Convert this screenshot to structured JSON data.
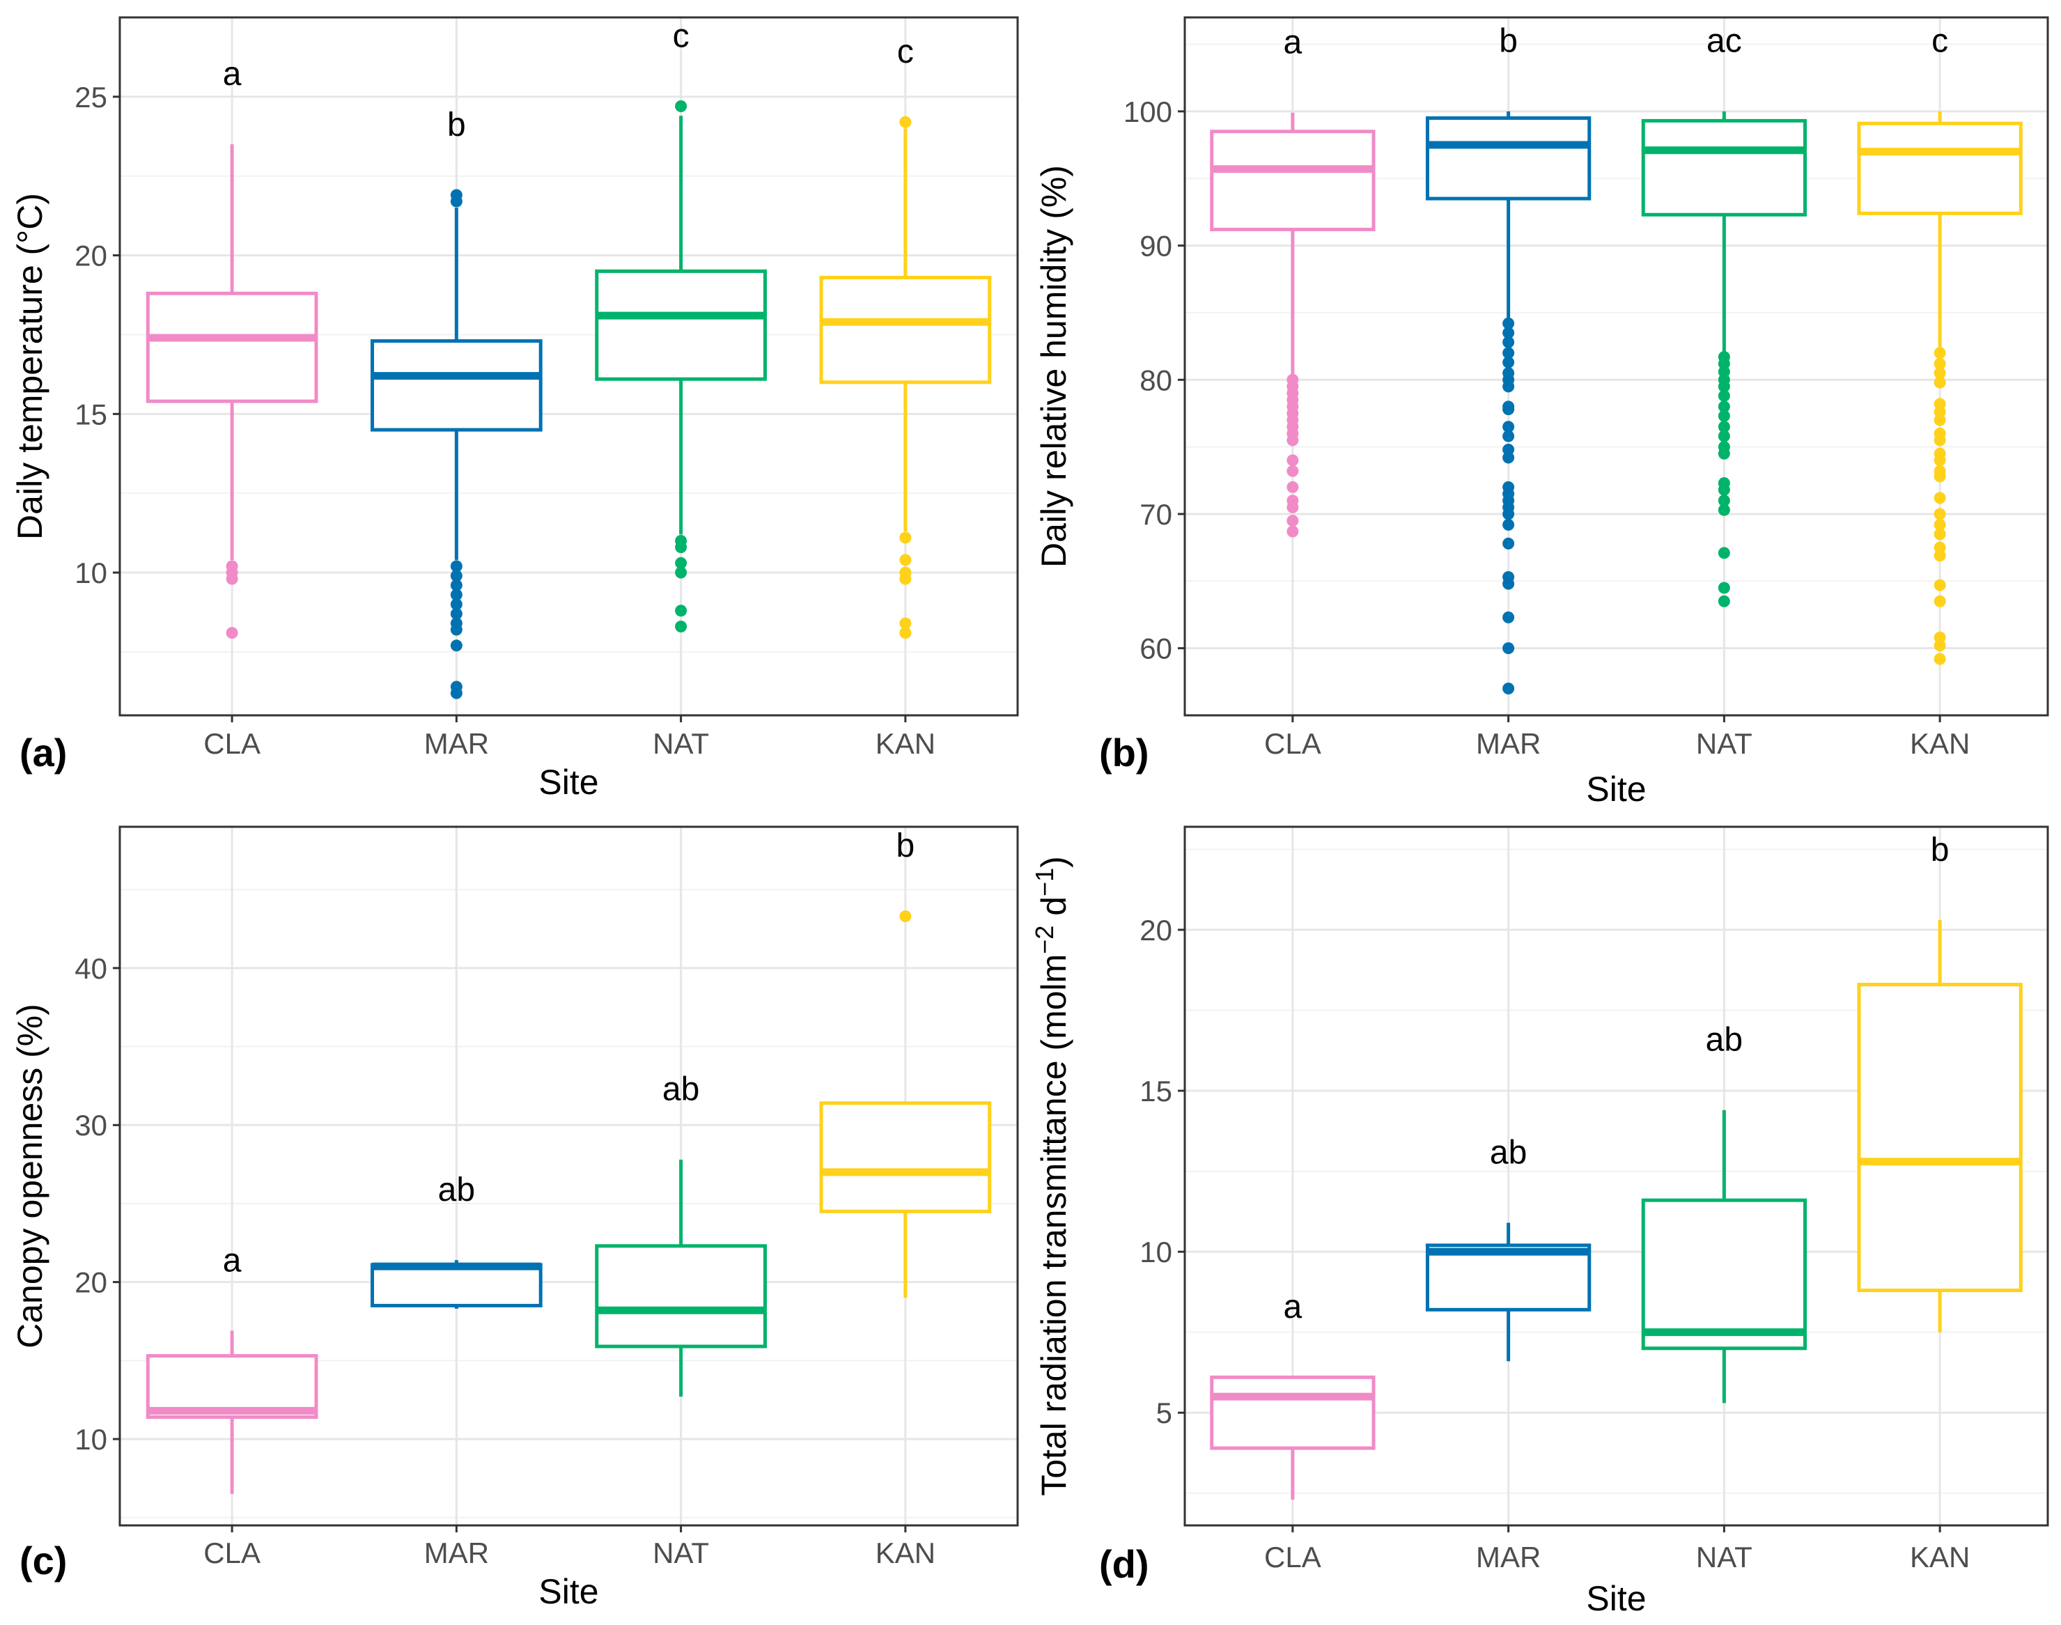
{
  "chart_data": [
    {
      "type": "box",
      "panel_label": "(a)",
      "title": "",
      "xlabel": "Site",
      "ylabel": "Daily temperature (°C)",
      "ylim": [
        5.5,
        27.5
      ],
      "yticks": [
        10,
        15,
        20,
        25
      ],
      "ytick_labels": [
        "10",
        "15",
        "20",
        "25"
      ],
      "grid": true,
      "categories": [
        "CLA",
        "MAR",
        "NAT",
        "KAN"
      ],
      "colors": [
        "#F08BC8",
        "#0072B2",
        "#00B36B",
        "#FFD11A"
      ],
      "boxes": [
        {
          "whisker_low": 10.4,
          "q1": 15.4,
          "median": 17.4,
          "q3": 18.8,
          "whisker_high": 23.5,
          "outliers": [
            10.2,
            10.0,
            9.8,
            8.1
          ],
          "letter": "a"
        },
        {
          "whisker_low": 10.4,
          "q1": 14.5,
          "median": 16.2,
          "q3": 17.3,
          "whisker_high": 21.5,
          "outliers": [
            21.9,
            21.7,
            10.2,
            9.9,
            9.6,
            9.3,
            9.0,
            8.7,
            8.4,
            8.2,
            7.7,
            6.4,
            6.2
          ],
          "letter": "b"
        },
        {
          "whisker_low": 11.2,
          "q1": 16.1,
          "median": 18.1,
          "q3": 19.5,
          "whisker_high": 24.4,
          "outliers": [
            24.7,
            11.0,
            10.8,
            10.3,
            10.0,
            8.8,
            8.3
          ],
          "letter": "c"
        },
        {
          "whisker_low": 11.3,
          "q1": 16.0,
          "median": 17.9,
          "q3": 19.3,
          "whisker_high": 24.0,
          "outliers": [
            24.2,
            11.1,
            10.4,
            10.0,
            9.8,
            8.4,
            8.1
          ],
          "letter": "c"
        }
      ]
    },
    {
      "type": "box",
      "panel_label": "(b)",
      "title": "",
      "xlabel": "Site",
      "ylabel": "Daily relative humidity (%)",
      "ylim": [
        55,
        107
      ],
      "yticks": [
        60,
        70,
        80,
        90,
        100
      ],
      "ytick_labels": [
        "60",
        "70",
        "80",
        "90",
        "100"
      ],
      "grid": true,
      "categories": [
        "CLA",
        "MAR",
        "NAT",
        "KAN"
      ],
      "colors": [
        "#F08BC8",
        "#0072B2",
        "#00B36B",
        "#FFD11A"
      ],
      "boxes": [
        {
          "whisker_low": 80.4,
          "q1": 91.2,
          "median": 95.7,
          "q3": 98.5,
          "whisker_high": 99.9,
          "outliers": [
            80.0,
            79.5,
            79.0,
            78.5,
            78.0,
            77.5,
            77.0,
            76.5,
            76.0,
            75.5,
            74.0,
            73.2,
            72.0,
            71.0,
            70.5,
            69.5,
            68.7
          ],
          "letter": "a"
        },
        {
          "whisker_low": 84.6,
          "q1": 93.5,
          "median": 97.5,
          "q3": 99.5,
          "whisker_high": 100,
          "outliers": [
            84.2,
            83.5,
            82.8,
            82.0,
            81.3,
            80.5,
            80.0,
            79.5,
            78.0,
            77.8,
            76.5,
            75.8,
            74.8,
            74.2,
            72.0,
            71.5,
            71.0,
            70.5,
            70.0,
            69.2,
            67.8,
            65.3,
            64.8,
            62.3,
            60.0,
            57.0
          ],
          "letter": "b"
        },
        {
          "whisker_low": 82.1,
          "q1": 92.3,
          "median": 97.1,
          "q3": 99.3,
          "whisker_high": 100,
          "outliers": [
            81.7,
            81.2,
            80.6,
            80.0,
            79.5,
            78.8,
            78.0,
            77.3,
            76.5,
            75.8,
            75.0,
            74.5,
            72.3,
            71.8,
            71.0,
            70.3,
            67.1,
            64.5,
            63.5
          ],
          "letter": "ac"
        },
        {
          "whisker_low": 82.4,
          "q1": 92.4,
          "median": 97.0,
          "q3": 99.1,
          "whisker_high": 100,
          "outliers": [
            82.0,
            81.2,
            80.5,
            79.8,
            78.2,
            77.6,
            77.0,
            76.0,
            75.5,
            74.5,
            74.0,
            73.2,
            72.8,
            71.2,
            70.0,
            69.2,
            68.5,
            67.5,
            66.9,
            64.7,
            63.5,
            60.8,
            60.2,
            59.2
          ],
          "letter": "c"
        }
      ]
    },
    {
      "type": "box",
      "panel_label": "(c)",
      "title": "",
      "xlabel": "Site",
      "ylabel": "Canopy openness (%)",
      "ylim": [
        4.5,
        49
      ],
      "yticks": [
        10,
        20,
        30,
        40
      ],
      "ytick_labels": [
        "10",
        "20",
        "30",
        "40"
      ],
      "grid": true,
      "categories": [
        "CLA",
        "MAR",
        "NAT",
        "KAN"
      ],
      "colors": [
        "#F08BC8",
        "#0072B2",
        "#00B36B",
        "#FFD11A"
      ],
      "boxes": [
        {
          "whisker_low": 6.5,
          "q1": 11.4,
          "median": 11.8,
          "q3": 15.3,
          "whisker_high": 16.9,
          "outliers": [],
          "letter": "a"
        },
        {
          "whisker_low": 18.3,
          "q1": 18.5,
          "median": 21.0,
          "q3": 21.1,
          "whisker_high": 21.4,
          "outliers": [],
          "letter": "ab"
        },
        {
          "whisker_low": 12.7,
          "q1": 15.9,
          "median": 18.2,
          "q3": 22.3,
          "whisker_high": 27.8,
          "outliers": [],
          "letter": "ab"
        },
        {
          "whisker_low": 19.0,
          "q1": 24.5,
          "median": 27.0,
          "q3": 31.4,
          "whisker_high": 31.4,
          "outliers": [
            43.3
          ],
          "letter": "b"
        }
      ]
    },
    {
      "type": "box",
      "panel_label": "(d)",
      "title": "",
      "xlabel": "Site",
      "ylabel": "Total radiation transmittance (molm",
      "ylabel_parts": [
        "Total radiation transmittance (molm",
        "−2",
        " d",
        "−1",
        ")"
      ],
      "ylim": [
        1.5,
        23.2
      ],
      "yticks": [
        5,
        10,
        15,
        20
      ],
      "ytick_labels": [
        "5",
        "10",
        "15",
        "20"
      ],
      "grid": true,
      "categories": [
        "CLA",
        "MAR",
        "NAT",
        "KAN"
      ],
      "colors": [
        "#F08BC8",
        "#0072B2",
        "#00B36B",
        "#FFD11A"
      ],
      "boxes": [
        {
          "whisker_low": 2.3,
          "q1": 3.9,
          "median": 5.5,
          "q3": 6.1,
          "whisker_high": 6.1,
          "outliers": [],
          "letter": "a"
        },
        {
          "whisker_low": 6.6,
          "q1": 8.2,
          "median": 10.0,
          "q3": 10.2,
          "whisker_high": 10.9,
          "outliers": [],
          "letter": "ab"
        },
        {
          "whisker_low": 5.3,
          "q1": 7.0,
          "median": 7.5,
          "q3": 11.6,
          "whisker_high": 14.4,
          "outliers": [],
          "letter": "ab"
        },
        {
          "whisker_low": 7.5,
          "q1": 8.8,
          "median": 12.8,
          "q3": 18.3,
          "whisker_high": 20.3,
          "outliers": [],
          "letter": "b"
        }
      ]
    }
  ]
}
